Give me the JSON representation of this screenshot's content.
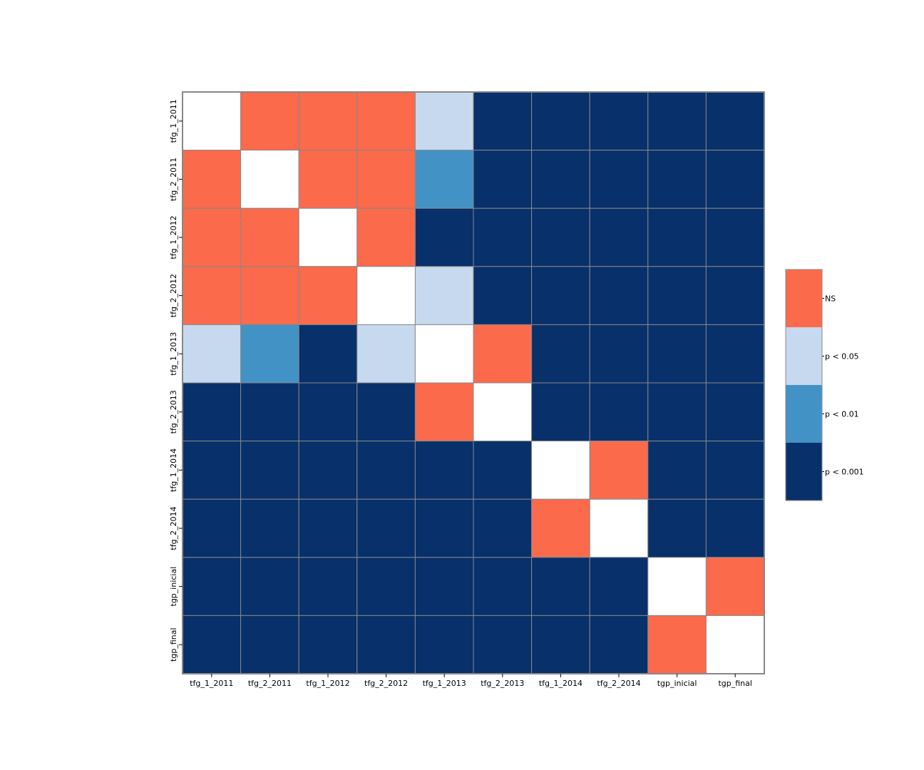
{
  "chart_data": {
    "type": "heatmap",
    "title": "",
    "xlabel": "",
    "ylabel": "",
    "labels": [
      "tfg_1_2011",
      "tfg_2_2011",
      "tfg_1_2012",
      "tfg_2_2012",
      "tfg_1_2013",
      "tfg_2_2013",
      "tfg_1_2014",
      "tfg_2_2014",
      "tgp_inicial",
      "tgp_final"
    ],
    "categories_legend": [
      {
        "key": "NS",
        "label": "NS",
        "color": "#fc6a4c"
      },
      {
        "key": "p05",
        "label": "p < 0.05",
        "color": "#c6d9ef"
      },
      {
        "key": "p01",
        "label": "p < 0.01",
        "color": "#4292c6"
      },
      {
        "key": "p001",
        "label": "p < 0.001",
        "color": "#08306b"
      }
    ],
    "diagonal_color": "#ffffff",
    "grid_color": "#888888",
    "legend_position": "right",
    "matrix": [
      [
        "diag",
        "NS",
        "NS",
        "NS",
        "p05",
        "p001",
        "p001",
        "p001",
        "p001",
        "p001"
      ],
      [
        "NS",
        "diag",
        "NS",
        "NS",
        "p01",
        "p001",
        "p001",
        "p001",
        "p001",
        "p001"
      ],
      [
        "NS",
        "NS",
        "diag",
        "NS",
        "p001",
        "p001",
        "p001",
        "p001",
        "p001",
        "p001"
      ],
      [
        "NS",
        "NS",
        "NS",
        "diag",
        "p05",
        "p001",
        "p001",
        "p001",
        "p001",
        "p001"
      ],
      [
        "p05",
        "p01",
        "p001",
        "p05",
        "diag",
        "NS",
        "p001",
        "p001",
        "p001",
        "p001"
      ],
      [
        "p001",
        "p001",
        "p001",
        "p001",
        "NS",
        "diag",
        "p001",
        "p001",
        "p001",
        "p001"
      ],
      [
        "p001",
        "p001",
        "p001",
        "p001",
        "p001",
        "p001",
        "diag",
        "NS",
        "p001",
        "p001"
      ],
      [
        "p001",
        "p001",
        "p001",
        "p001",
        "p001",
        "p001",
        "NS",
        "diag",
        "p001",
        "p001"
      ],
      [
        "p001",
        "p001",
        "p001",
        "p001",
        "p001",
        "p001",
        "p001",
        "p001",
        "diag",
        "NS"
      ],
      [
        "p001",
        "p001",
        "p001",
        "p001",
        "p001",
        "p001",
        "p001",
        "p001",
        "NS",
        "diag"
      ]
    ]
  }
}
